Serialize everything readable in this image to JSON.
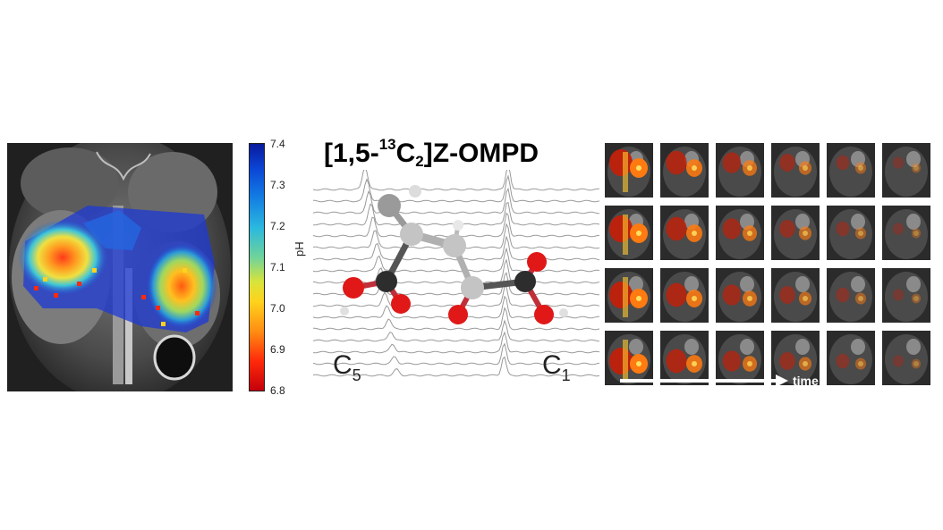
{
  "colorbar": {
    "label": "pH",
    "ticks": [
      "7.4",
      "7.3",
      "7.2",
      "7.1",
      "7.0",
      "6.9",
      "6.8"
    ]
  },
  "compound": {
    "prefix": "[1,5-",
    "isotope": "13",
    "element": "C",
    "count": "2",
    "suffix": "]Z-OMPD"
  },
  "carbons": {
    "left": {
      "letter": "C",
      "index": "5"
    },
    "right": {
      "letter": "C",
      "index": "1"
    }
  },
  "time_series": {
    "rows": 4,
    "columns": 6,
    "axis_label": "time"
  }
}
